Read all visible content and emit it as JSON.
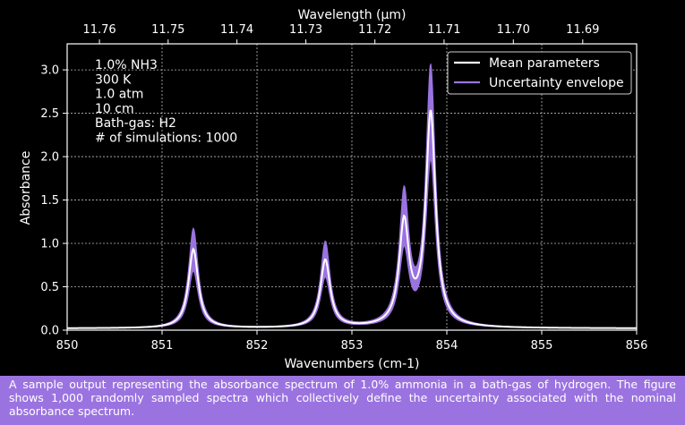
{
  "chart_data": {
    "type": "line",
    "xlabel": "Wavenumbers (cm-1)",
    "ylabel": "Absorbance",
    "top_xlabel": "Wavelength (µm)",
    "xlim": [
      850,
      856
    ],
    "ylim": [
      0,
      3.3
    ],
    "xticks": [
      "850",
      "851",
      "852",
      "853",
      "854",
      "855",
      "856"
    ],
    "yticks": [
      "0.0",
      "0.5",
      "1.0",
      "1.5",
      "2.0",
      "2.5",
      "3.0"
    ],
    "top_xticks": [
      "11.76",
      "11.75",
      "11.74",
      "11.73",
      "11.72",
      "11.71",
      "11.70",
      "11.69"
    ],
    "grid": true,
    "legend_position": "top-right",
    "annotation_lines": [
      "1.0% NH3",
      "300 K",
      "1.0 atm",
      "10 cm",
      "Bath-gas: H2",
      "# of simulations: 1000"
    ],
    "peaks": [
      {
        "center": 851.33,
        "mean": 0.93,
        "upper": 1.17,
        "lower": 0.68
      },
      {
        "center": 852.72,
        "mean": 0.8,
        "upper": 1.01,
        "lower": 0.6
      },
      {
        "center": 853.55,
        "mean": 1.2,
        "upper": 1.52,
        "lower": 0.88
      },
      {
        "center": 853.83,
        "mean": 2.48,
        "upper": 3.0,
        "lower": 1.93
      }
    ],
    "series": [
      {
        "name": "Mean parameters",
        "color": "#ffffff"
      },
      {
        "name": "Uncertainty envelope",
        "color": "#9b73e0"
      }
    ]
  },
  "caption": "A sample output representing the absorbance spectrum of 1.0% ammonia in a bath-gas of hydrogen. The figure shows 1,000 randomly sampled spectra which collectively define the uncertainty associated with the nominal absorbance spectrum."
}
